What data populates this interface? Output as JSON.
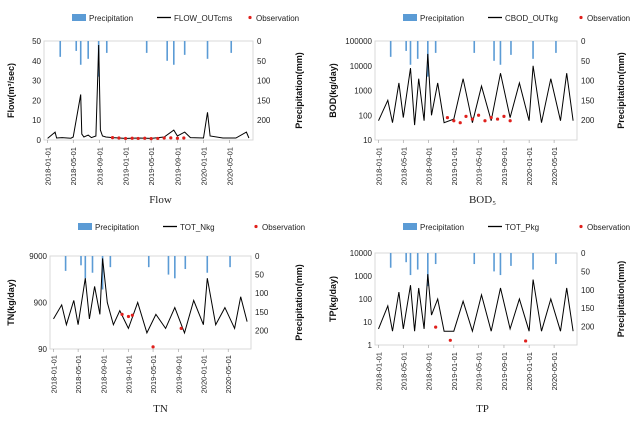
{
  "chart_data": [
    {
      "type": "line",
      "caption": "Flow",
      "ylabel": "Flow(m³/sec)",
      "y2label": "Precipitation(mm)",
      "yscale": "linear",
      "ylim": [
        0,
        50
      ],
      "yticks": [
        "0",
        "10",
        "20",
        "30",
        "40",
        "50"
      ],
      "y2lim": [
        0,
        250
      ],
      "y2ticks": [
        "0",
        "50",
        "100",
        "150",
        "200"
      ],
      "xticks": [
        "2018-01-01",
        "2018-05-01",
        "2018-09-01",
        "2019-01-01",
        "2019-05-01",
        "2019-09-01",
        "2020-01-01",
        "2020-05-01"
      ],
      "legend": [
        "Precipitation",
        "FLOW_OUTcms",
        "Observation"
      ],
      "colors": {
        "precipitation": "#5b9bd5",
        "simulated": "#000000",
        "observation": "#e0201c"
      },
      "series": [
        {
          "name": "FLOW_OUTcms",
          "x": [
            "2018-01-01",
            "2018-02-05",
            "2018-02-12",
            "2018-03-10",
            "2018-04-20",
            "2018-05-01",
            "2018-06-05",
            "2018-06-10",
            "2018-06-20",
            "2018-07-10",
            "2018-07-25",
            "2018-08-15",
            "2018-08-28",
            "2018-09-05",
            "2018-09-15",
            "2018-10-01",
            "2018-11-01",
            "2019-01-01",
            "2019-03-01",
            "2019-05-01",
            "2019-07-01",
            "2019-08-15",
            "2019-09-01",
            "2019-10-05",
            "2019-11-01",
            "2020-01-01",
            "2020-01-20",
            "2020-02-01",
            "2020-04-01",
            "2020-06-01",
            "2020-07-20",
            "2020-08-01"
          ],
          "values": [
            0.8,
            4.0,
            1.0,
            1.2,
            0.9,
            1.5,
            23,
            3.0,
            1.5,
            2.5,
            1.2,
            2.0,
            48,
            5.0,
            2.0,
            1.5,
            1.2,
            0.8,
            1.0,
            0.8,
            1.5,
            5.0,
            2.0,
            4.0,
            1.2,
            1.0,
            14,
            2.0,
            1.0,
            1.0,
            4.0,
            1.0
          ]
        },
        {
          "name": "Observation",
          "x": [
            "2018-11-01",
            "2018-12-01",
            "2019-01-01",
            "2019-02-01",
            "2019-03-01",
            "2019-04-01",
            "2019-05-01",
            "2019-06-01",
            "2019-07-01",
            "2019-08-01",
            "2019-09-01",
            "2019-10-01"
          ],
          "values": [
            1.2,
            1.0,
            0.8,
            0.9,
            0.8,
            0.9,
            0.7,
            0.8,
            1.0,
            1.1,
            0.9,
            1.0
          ]
        }
      ],
      "precipitation": {
        "x": [
          "2018-03-01",
          "2018-05-15",
          "2018-06-05",
          "2018-07-10",
          "2018-08-28",
          "2018-10-05",
          "2019-04-10",
          "2019-07-15",
          "2019-08-15",
          "2019-10-05",
          "2020-01-20",
          "2020-05-10"
        ],
        "values": [
          40,
          25,
          60,
          45,
          90,
          30,
          30,
          50,
          60,
          35,
          45,
          30
        ]
      }
    },
    {
      "type": "line",
      "caption": "BOD₅",
      "ylabel": "BOD(kg/day)",
      "y2label": "Precipitation(mm)",
      "yscale": "log",
      "ylim": [
        10,
        100000
      ],
      "yticks": [
        "10",
        "100",
        "1000",
        "10000",
        "100000"
      ],
      "y2lim": [
        0,
        250
      ],
      "y2ticks": [
        "0",
        "50",
        "100",
        "150",
        "200"
      ],
      "xticks": [
        "2018-01-01",
        "2018-05-01",
        "2018-09-01",
        "2019-01-01",
        "2019-05-01",
        "2019-09-01",
        "2020-01-01",
        "2020-05-01"
      ],
      "legend": [
        "Precipitation",
        "CBOD_OUTkg",
        "Observation"
      ],
      "colors": {
        "precipitation": "#5b9bd5",
        "simulated": "#000000",
        "observation": "#e0201c"
      },
      "series": [
        {
          "name": "CBOD_OUTkg",
          "x": [
            "2018-01-01",
            "2018-02-15",
            "2018-03-10",
            "2018-04-10",
            "2018-05-01",
            "2018-06-05",
            "2018-06-25",
            "2018-07-15",
            "2018-08-10",
            "2018-08-28",
            "2018-09-15",
            "2018-10-15",
            "2018-11-15",
            "2019-01-01",
            "2019-02-15",
            "2019-04-01",
            "2019-05-15",
            "2019-07-01",
            "2019-08-15",
            "2019-10-01",
            "2019-11-15",
            "2020-01-01",
            "2020-01-20",
            "2020-03-01",
            "2020-04-15",
            "2020-06-01",
            "2020-07-01",
            "2020-08-01"
          ],
          "values": [
            60,
            400,
            50,
            2000,
            80,
            8000,
            40,
            3000,
            60,
            30000,
            100,
            2000,
            50,
            70,
            3000,
            50,
            1500,
            60,
            5000,
            80,
            2000,
            60,
            10000,
            50,
            3000,
            60,
            5000,
            60
          ]
        },
        {
          "name": "Observation",
          "x": [
            "2018-12-01",
            "2019-01-01",
            "2019-02-01",
            "2019-03-01",
            "2019-04-01",
            "2019-05-01",
            "2019-06-01",
            "2019-07-01",
            "2019-08-01",
            "2019-09-01",
            "2019-10-01"
          ],
          "values": [
            80,
            60,
            50,
            90,
            70,
            100,
            60,
            80,
            70,
            90,
            60
          ]
        }
      ],
      "precipitation": {
        "x": [
          "2018-03-01",
          "2018-05-15",
          "2018-06-05",
          "2018-07-10",
          "2018-08-28",
          "2018-10-05",
          "2019-04-10",
          "2019-07-15",
          "2019-08-15",
          "2019-10-05",
          "2020-01-20",
          "2020-05-10"
        ],
        "values": [
          40,
          25,
          60,
          45,
          90,
          30,
          30,
          50,
          60,
          35,
          45,
          30
        ]
      }
    },
    {
      "type": "line",
      "caption": "TN",
      "ylabel": "TN(kg/day)",
      "y2label": "Precipitation(mm)",
      "yscale": "log",
      "ylim": [
        90,
        9000
      ],
      "yticks": [
        "90",
        "900",
        "9000"
      ],
      "y2lim": [
        0,
        250
      ],
      "y2ticks": [
        "0",
        "50",
        "100",
        "150",
        "200"
      ],
      "xticks": [
        "2018-01-01",
        "2018-05-01",
        "2018-09-01",
        "2019-01-01",
        "2019-05-01",
        "2019-09-01",
        "2020-01-01",
        "2020-05-01"
      ],
      "legend": [
        "Precipitation",
        "TOT_Nkg",
        "Observation"
      ],
      "colors": {
        "precipitation": "#5b9bd5",
        "simulated": "#000000",
        "observation": "#e0201c"
      },
      "series": [
        {
          "name": "TOT_Nkg",
          "x": [
            "2018-01-01",
            "2018-02-10",
            "2018-03-05",
            "2018-04-10",
            "2018-05-01",
            "2018-06-05",
            "2018-06-25",
            "2018-07-20",
            "2018-08-15",
            "2018-08-28",
            "2018-09-20",
            "2018-10-20",
            "2018-11-20",
            "2019-01-01",
            "2019-02-15",
            "2019-04-01",
            "2019-05-15",
            "2019-07-01",
            "2019-08-15",
            "2019-10-01",
            "2019-11-15",
            "2020-01-01",
            "2020-01-20",
            "2020-03-01",
            "2020-04-15",
            "2020-06-01",
            "2020-07-01",
            "2020-08-01"
          ],
          "values": [
            400,
            800,
            300,
            1000,
            300,
            3000,
            400,
            2000,
            500,
            8000,
            900,
            300,
            600,
            250,
            900,
            200,
            500,
            250,
            700,
            200,
            1000,
            300,
            3000,
            300,
            700,
            250,
            1200,
            350
          ]
        },
        {
          "name": "Observation",
          "x": [
            "2018-12-01",
            "2019-01-01",
            "2019-01-20",
            "2019-05-01",
            "2019-09-15"
          ],
          "values": [
            500,
            450,
            480,
            100,
            250
          ]
        }
      ],
      "precipitation": {
        "x": [
          "2018-03-01",
          "2018-05-15",
          "2018-06-05",
          "2018-07-10",
          "2018-08-28",
          "2018-10-05",
          "2019-04-10",
          "2019-07-15",
          "2019-08-15",
          "2019-10-05",
          "2020-01-20",
          "2020-05-10"
        ],
        "values": [
          40,
          25,
          60,
          45,
          90,
          30,
          30,
          50,
          60,
          35,
          45,
          30
        ]
      }
    },
    {
      "type": "line",
      "caption": "TP",
      "ylabel": "TP(kg/day)",
      "y2label": "Precipitation(mm)",
      "yscale": "log",
      "ylim": [
        1,
        10000
      ],
      "yticks": [
        "1",
        "10",
        "100",
        "1000",
        "10000"
      ],
      "y2lim": [
        0,
        250
      ],
      "y2ticks": [
        "0",
        "50",
        "100",
        "150",
        "200"
      ],
      "xticks": [
        "2018-01-01",
        "2018-05-01",
        "2018-09-01",
        "2019-01-01",
        "2019-05-01",
        "2019-09-01",
        "2020-01-01",
        "2020-05-01"
      ],
      "legend": [
        "Precipitation",
        "TOT_Pkg",
        "Observation"
      ],
      "colors": {
        "precipitation": "#5b9bd5",
        "simulated": "#000000",
        "observation": "#e0201c"
      },
      "series": [
        {
          "name": "TOT_Pkg",
          "x": [
            "2018-01-01",
            "2018-02-15",
            "2018-03-10",
            "2018-04-10",
            "2018-05-01",
            "2018-06-05",
            "2018-06-25",
            "2018-07-15",
            "2018-08-10",
            "2018-08-28",
            "2018-09-15",
            "2018-10-15",
            "2018-11-15",
            "2019-01-01",
            "2019-02-15",
            "2019-04-01",
            "2019-05-15",
            "2019-07-01",
            "2019-08-15",
            "2019-10-01",
            "2019-11-15",
            "2020-01-01",
            "2020-01-20",
            "2020-03-01",
            "2020-04-15",
            "2020-06-01",
            "2020-07-01",
            "2020-08-01"
          ],
          "values": [
            5,
            50,
            4,
            200,
            5,
            400,
            4,
            300,
            5,
            1200,
            20,
            100,
            4,
            4,
            80,
            4,
            150,
            4,
            300,
            5,
            100,
            4,
            700,
            4,
            100,
            4,
            300,
            4
          ]
        },
        {
          "name": "Observation",
          "x": [
            "2018-10-05",
            "2018-12-15",
            "2019-12-15"
          ],
          "values": [
            6,
            1.6,
            1.5
          ]
        }
      ],
      "precipitation": {
        "x": [
          "2018-03-01",
          "2018-05-15",
          "2018-06-05",
          "2018-07-10",
          "2018-08-28",
          "2018-10-05",
          "2019-04-10",
          "2019-07-15",
          "2019-08-15",
          "2019-10-05",
          "2020-01-20",
          "2020-05-10"
        ],
        "values": [
          40,
          25,
          60,
          45,
          90,
          30,
          30,
          50,
          60,
          35,
          45,
          30
        ]
      }
    }
  ]
}
